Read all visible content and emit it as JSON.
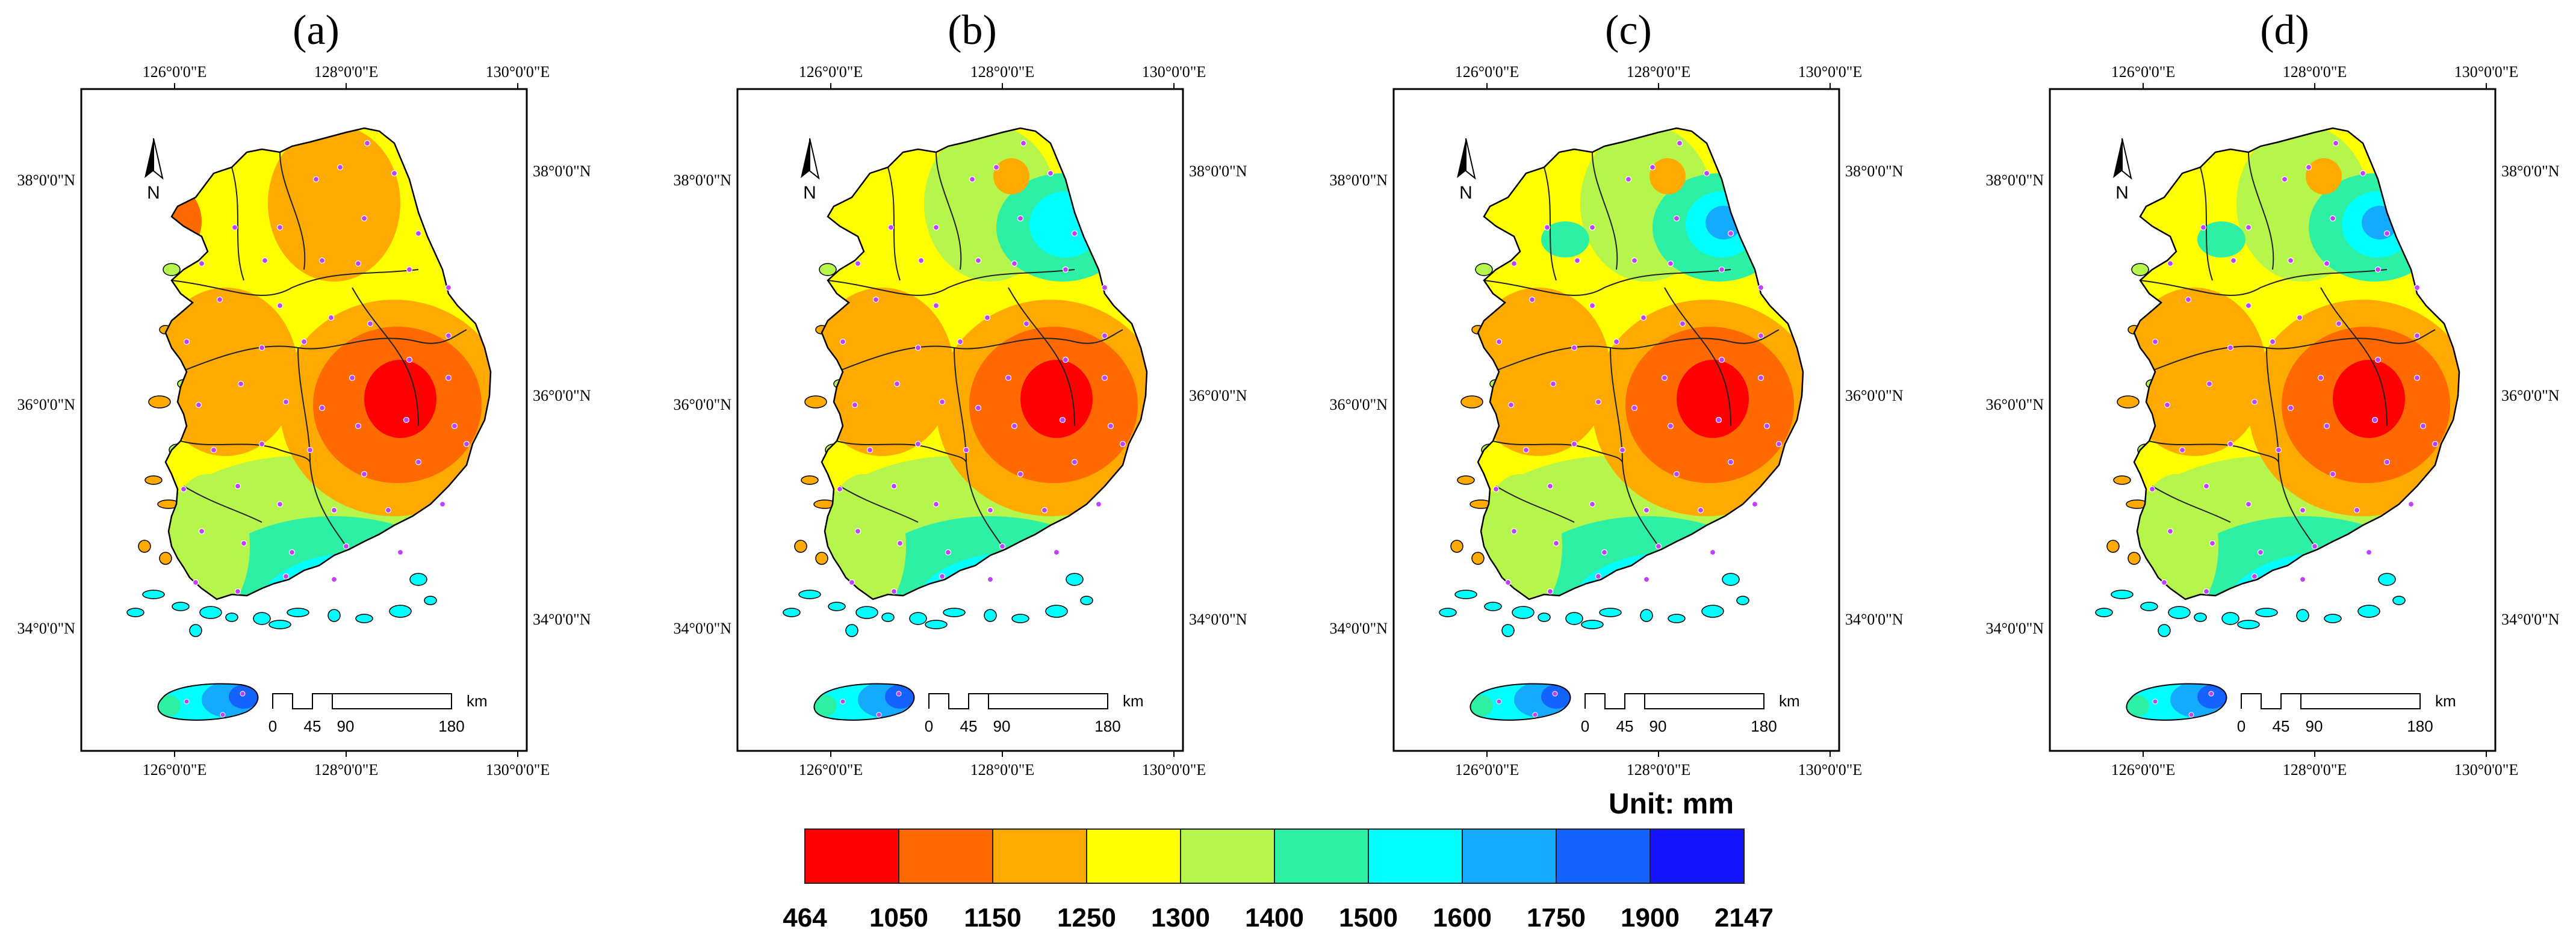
{
  "panels": [
    {
      "label": "(a)",
      "hotspot": 1,
      "ne_bluespot": 0
    },
    {
      "label": "(b)",
      "hotspot": 1,
      "ne_bluespot": 1
    },
    {
      "label": "(c)",
      "hotspot": 1,
      "ne_bluespot": 2
    },
    {
      "label": "(d)",
      "hotspot": 1,
      "ne_bluespot": 2
    }
  ],
  "axes": {
    "top_lon": [
      "126°0'0\"E",
      "128°0'0\"E",
      "130°0'0\"E"
    ],
    "bottom_lon": [
      "126°0'0\"E",
      "128°0'0\"E",
      "130°0'0\"E"
    ],
    "left_lat": [
      "38°0'0\"N",
      "36°0'0\"N",
      "34°0'0\"N"
    ],
    "right_lat": [
      "38°0'0\"N",
      "36°0'0\"N",
      "34°0'0\"N"
    ]
  },
  "north_label": "N",
  "scale_bar": {
    "ticks": [
      "0",
      "45",
      "90",
      "180"
    ],
    "unit": "km"
  },
  "legend": {
    "title": "Unit: mm",
    "breaks": [
      "464",
      "1050",
      "1150",
      "1250",
      "1300",
      "1400",
      "1500",
      "1600",
      "1750",
      "1900",
      "2147"
    ],
    "colors": [
      "#ff0000",
      "#ff6a00",
      "#ffaa00",
      "#ffff00",
      "#b6f54c",
      "#2ef0a5",
      "#00ffff",
      "#14aaff",
      "#1463ff",
      "#1414ff"
    ]
  }
}
